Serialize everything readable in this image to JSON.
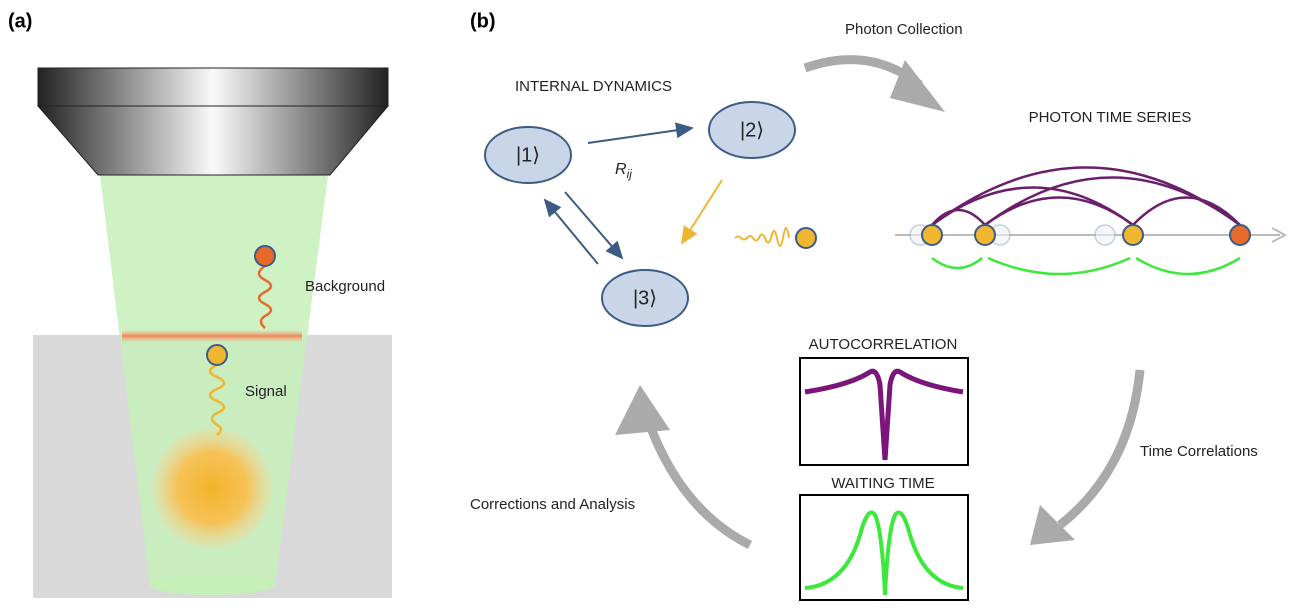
{
  "panel_a": {
    "label": "(a)",
    "background": "Background",
    "signal": "Signal"
  },
  "panel_b": {
    "label": "(b)",
    "internal_dynamics": "INTERNAL DYNAMICS",
    "states": [
      "|1⟩",
      "|2⟩",
      "|3⟩"
    ],
    "rate": {
      "symbol": "R",
      "subscript": "ij"
    },
    "photon_collection": "Photon Collection",
    "photon_time_series": "PHOTON TIME SERIES",
    "autocorrelation": "AUTOCORRELATION",
    "waiting_time": "WAITING TIME",
    "time_correlations": "Time Correlations",
    "corrections": "Corrections and Analysis"
  }
}
